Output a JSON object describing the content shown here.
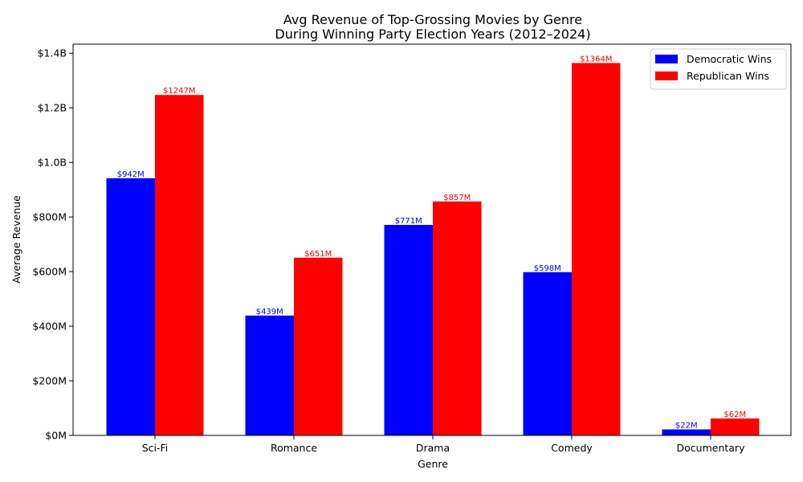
{
  "chart_data": {
    "type": "bar",
    "title_line1": "Avg Revenue of Top-Grossing Movies by Genre",
    "title_line2": "During Winning Party Election Years (2012–2024)",
    "xlabel": "Genre",
    "ylabel": "Average Revenue",
    "categories": [
      "Sci-Fi",
      "Romance",
      "Drama",
      "Comedy",
      "Documentary"
    ],
    "series": [
      {
        "name": "Democratic Wins",
        "color": "#0000ff",
        "values": [
          942,
          439,
          771,
          598,
          22
        ],
        "labels": [
          "$942M",
          "$439M",
          "$771M",
          "$598M",
          "$22M"
        ]
      },
      {
        "name": "Republican Wins",
        "color": "#ff0000",
        "values": [
          1247,
          651,
          857,
          1364,
          62
        ],
        "labels": [
          "$1247M",
          "$651M",
          "$857M",
          "$1364M",
          "$62M"
        ]
      }
    ],
    "ylim": [
      0,
      1433
    ],
    "y_ticks": [
      0,
      200,
      400,
      600,
      800,
      1000,
      1200,
      1400
    ],
    "y_tick_labels": [
      "$0M",
      "$200M",
      "$400M",
      "$600M",
      "$800M",
      "$1.0B",
      "$1.2B",
      "$1.4B"
    ],
    "legend_position": "top-right",
    "grid": false
  }
}
